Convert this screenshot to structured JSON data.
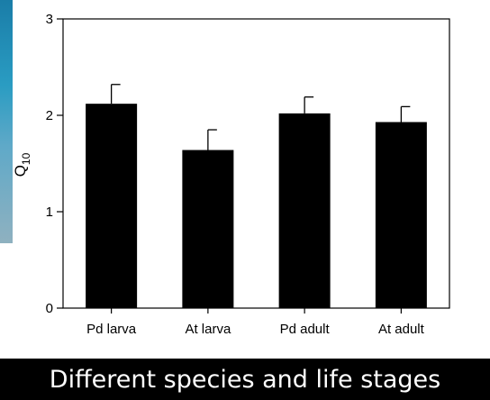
{
  "caption": "Different species and life stages",
  "colors": {
    "bar": "#000000",
    "panel": "#ffffff",
    "background": "#000000",
    "caption": "#ffffff"
  },
  "chart_data": {
    "type": "bar",
    "categories": [
      "Pd larva",
      "At larva",
      "Pd adult",
      "At adult"
    ],
    "values": [
      2.12,
      1.64,
      2.02,
      1.93
    ],
    "errors": [
      0.2,
      0.21,
      0.17,
      0.16
    ],
    "ylabel_main": "Q",
    "ylabel_sub": "10",
    "ylim": [
      0,
      3
    ],
    "yticks": [
      "0",
      "1",
      "2",
      "3"
    ],
    "grid": false,
    "legend": "none"
  }
}
